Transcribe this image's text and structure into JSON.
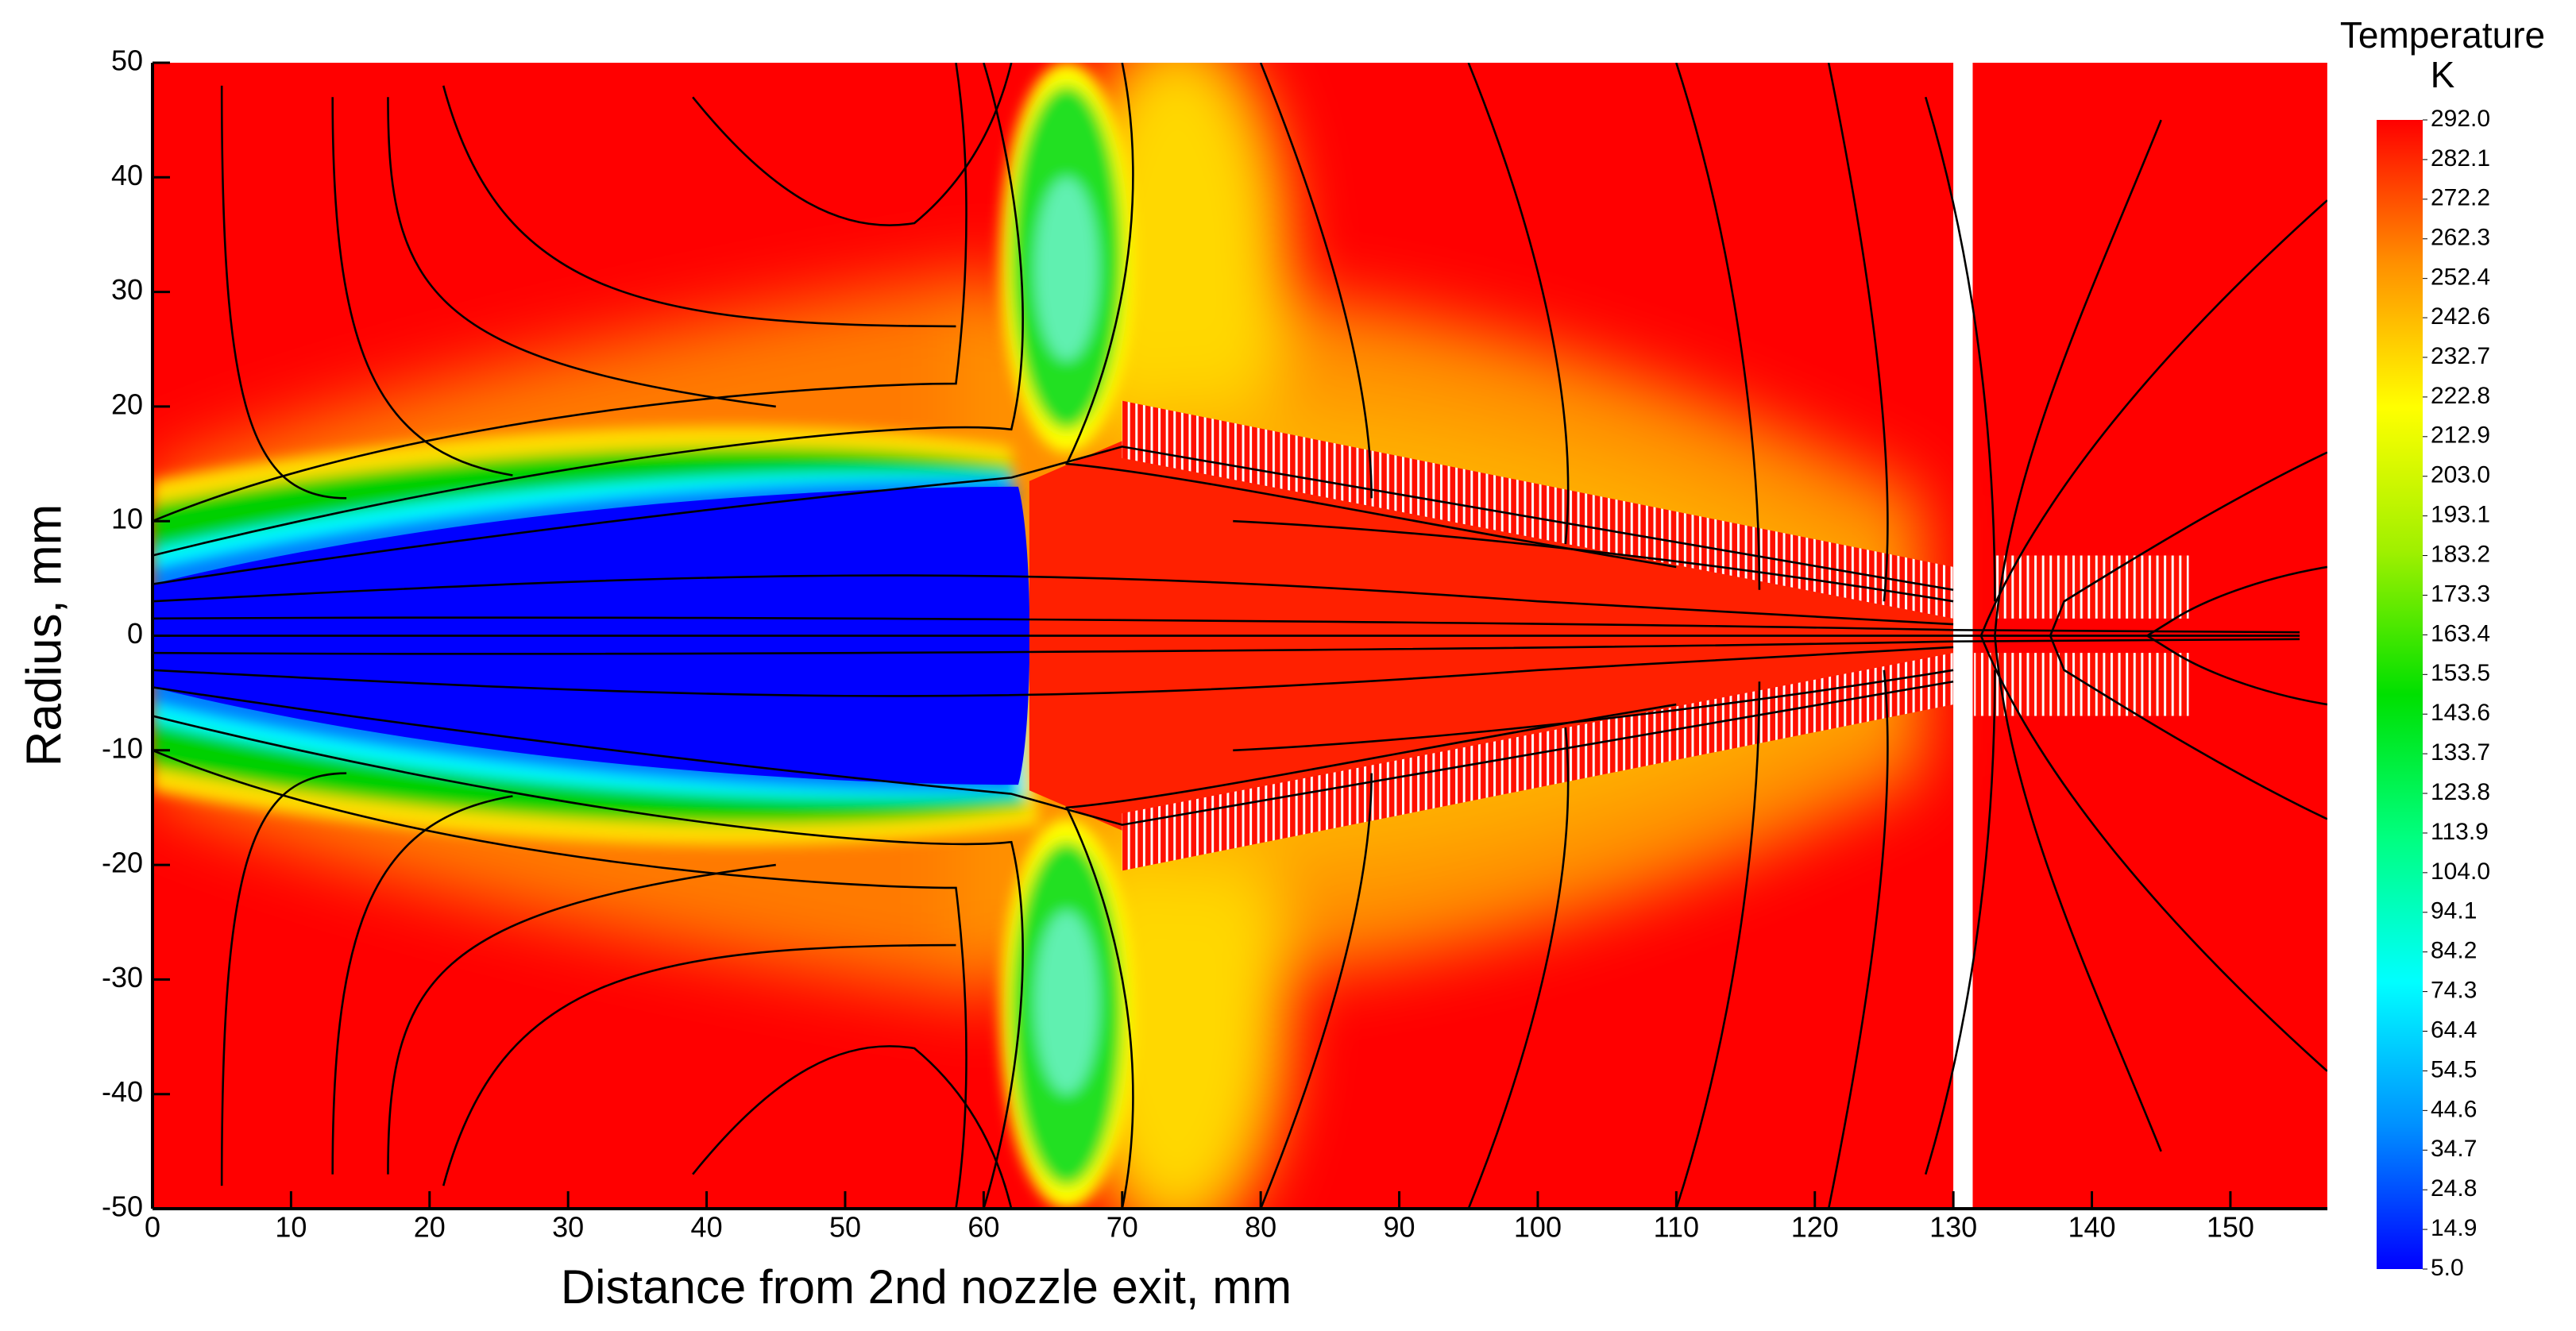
{
  "chart_data": {
    "type": "contour",
    "xlabel": "Distance from 2nd nozzle exit,  mm",
    "ylabel": "Radius,  mm",
    "xlim": [
      0,
      157
    ],
    "ylim": [
      -50,
      50
    ],
    "xticks": [
      0,
      10,
      20,
      30,
      40,
      50,
      60,
      70,
      80,
      90,
      100,
      110,
      120,
      130,
      140,
      150
    ],
    "yticks": [
      -50,
      -40,
      -30,
      -20,
      -10,
      0,
      10,
      20,
      30,
      40,
      50
    ],
    "colorbar": {
      "title": "Temperature",
      "unit": "K",
      "clim": [
        5,
        292
      ],
      "colormap": [
        "#0000ff",
        "#0090ff",
        "#00ffff",
        "#00ff80",
        "#00e000",
        "#a0f000",
        "#ffff00",
        "#ff9000",
        "#ff0000"
      ],
      "ticks": [
        {
          "value": 292,
          "label": "292.0"
        },
        282.1,
        272.2,
        262.3,
        252.4,
        242.6,
        232.7,
        222.8,
        212.9,
        {
          "value": 203,
          "label": "203.0"
        },
        193.1,
        183.2,
        173.3,
        163.4,
        153.5,
        143.6,
        133.7,
        123.8,
        113.9,
        {
          "value": 104,
          "label": "104.0"
        },
        94.1,
        84.2,
        74.3,
        64.4,
        54.5,
        44.6,
        34.7,
        24.8,
        14.9,
        {
          "value": 5,
          "label": "5.0"
        }
      ]
    }
  }
}
